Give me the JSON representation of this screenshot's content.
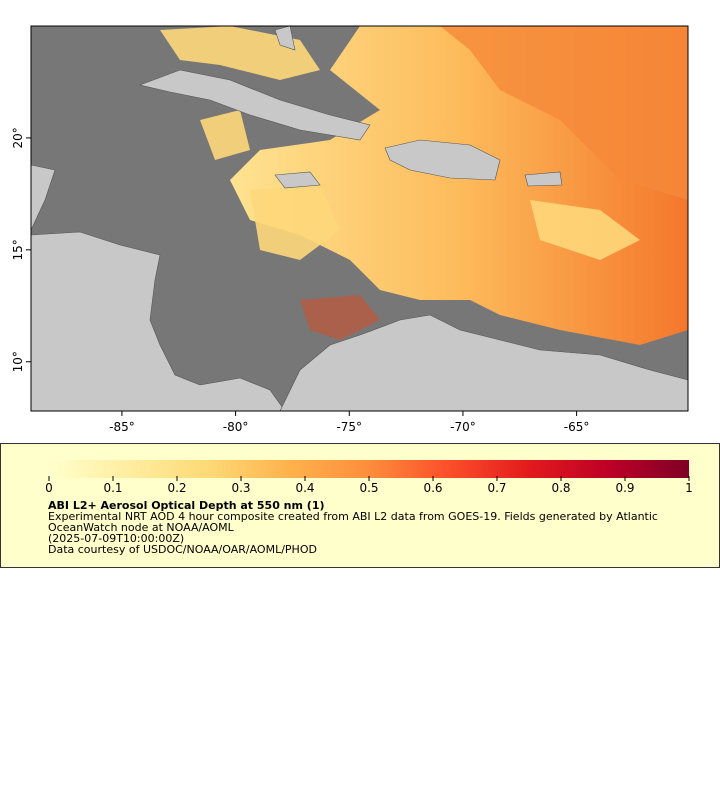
{
  "map": {
    "xlim": [
      -89,
      -60.1
    ],
    "ylim": [
      7.8,
      25
    ],
    "xticks": [
      {
        "value": -85,
        "label": "-85°"
      },
      {
        "value": -80,
        "label": "-80°"
      },
      {
        "value": -75,
        "label": "-75°"
      },
      {
        "value": -70,
        "label": "-70°"
      },
      {
        "value": -65,
        "label": "-65°"
      }
    ],
    "yticks": [
      {
        "value": 10,
        "label": "10°"
      },
      {
        "value": 15,
        "label": "15°"
      },
      {
        "value": 20,
        "label": "20°"
      }
    ]
  },
  "colorbar": {
    "range": [
      0,
      1
    ],
    "ticks": [
      0,
      0.1,
      0.2,
      0.3,
      0.4,
      0.5,
      0.6,
      0.7,
      0.8,
      0.9,
      1
    ],
    "colors": [
      "#ffffcc",
      "#ffeda0",
      "#fed976",
      "#feb24c",
      "#fd8d3c",
      "#fc4e2a",
      "#e31a1c",
      "#bd0026",
      "#800026"
    ]
  },
  "legend": {
    "title": "ABI L2+ Aerosol Optical Depth at 550 nm (1)",
    "description": "Experimental NRT AOD 4 hour composite created from ABI L2 data from GOES-19. Fields generated by Atlantic OceanWatch node at NOAA/AOML",
    "time": "(2025-07-09T10:00:00Z)",
    "credit": "Data courtesy of USDOC/NOAA/OAR/AOML/PHOD"
  }
}
